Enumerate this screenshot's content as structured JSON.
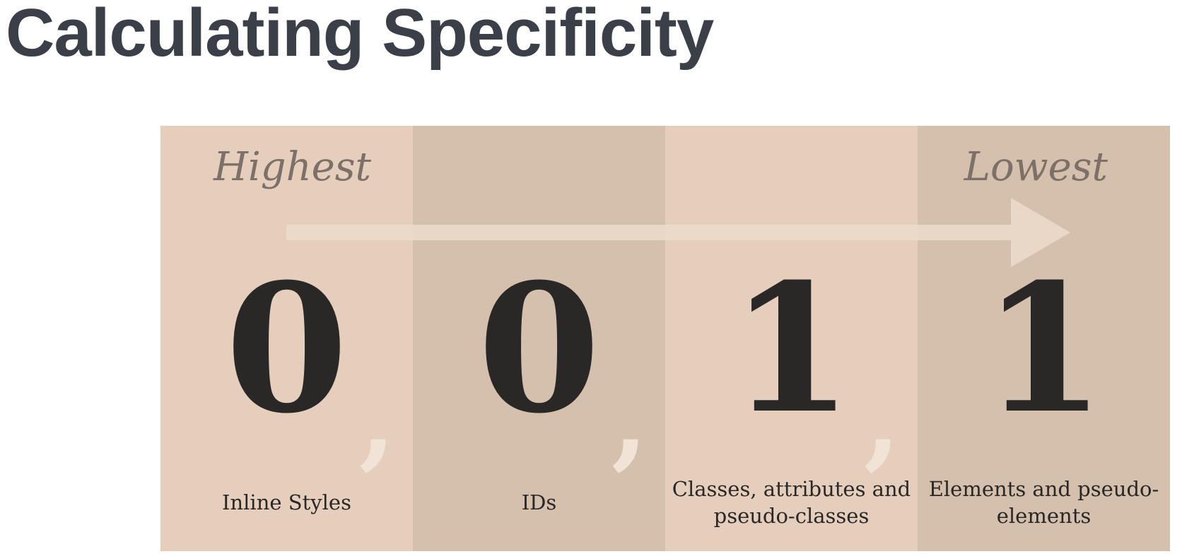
{
  "title": "Calculating Specificity",
  "labels": {
    "highest": "Highest",
    "lowest": "Lowest"
  },
  "columns": [
    {
      "value": "0",
      "caption": "Inline Styles",
      "comma": ","
    },
    {
      "value": "0",
      "caption": "IDs",
      "comma": ","
    },
    {
      "value": "1",
      "caption": "Classes, attributes and pseudo-classes",
      "comma": ","
    },
    {
      "value": "1",
      "caption": "Elements and pseudo-elements",
      "comma": ""
    }
  ],
  "colors": {
    "title": "#3a3f48",
    "panel_light": "#e5cfbc",
    "panel_dark": "#d5c0ae",
    "digit": "#2a2826",
    "arrow": "#ecdccd"
  }
}
